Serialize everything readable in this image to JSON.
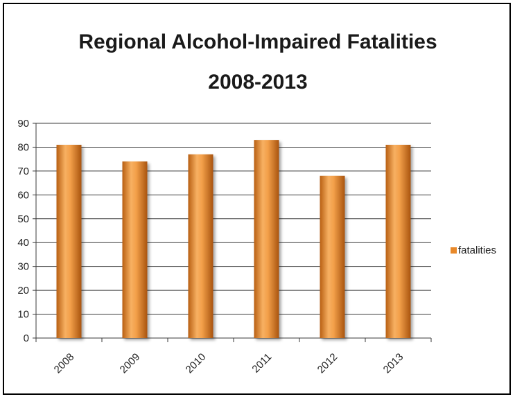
{
  "chart_data": {
    "type": "bar",
    "title": "Regional Alcohol-Impaired Fatalities",
    "subtitle": "2008-2013",
    "categories": [
      "2008",
      "2009",
      "2010",
      "2011",
      "2012",
      "2013"
    ],
    "series": [
      {
        "name": "fatalities",
        "values": [
          81,
          74,
          77,
          83,
          68,
          81
        ]
      }
    ],
    "ylim": [
      0,
      90
    ],
    "yticks": [
      0,
      10,
      20,
      30,
      40,
      50,
      60,
      70,
      80,
      90
    ],
    "grid": true,
    "legend": "right",
    "bar_color": "#e8892a"
  }
}
